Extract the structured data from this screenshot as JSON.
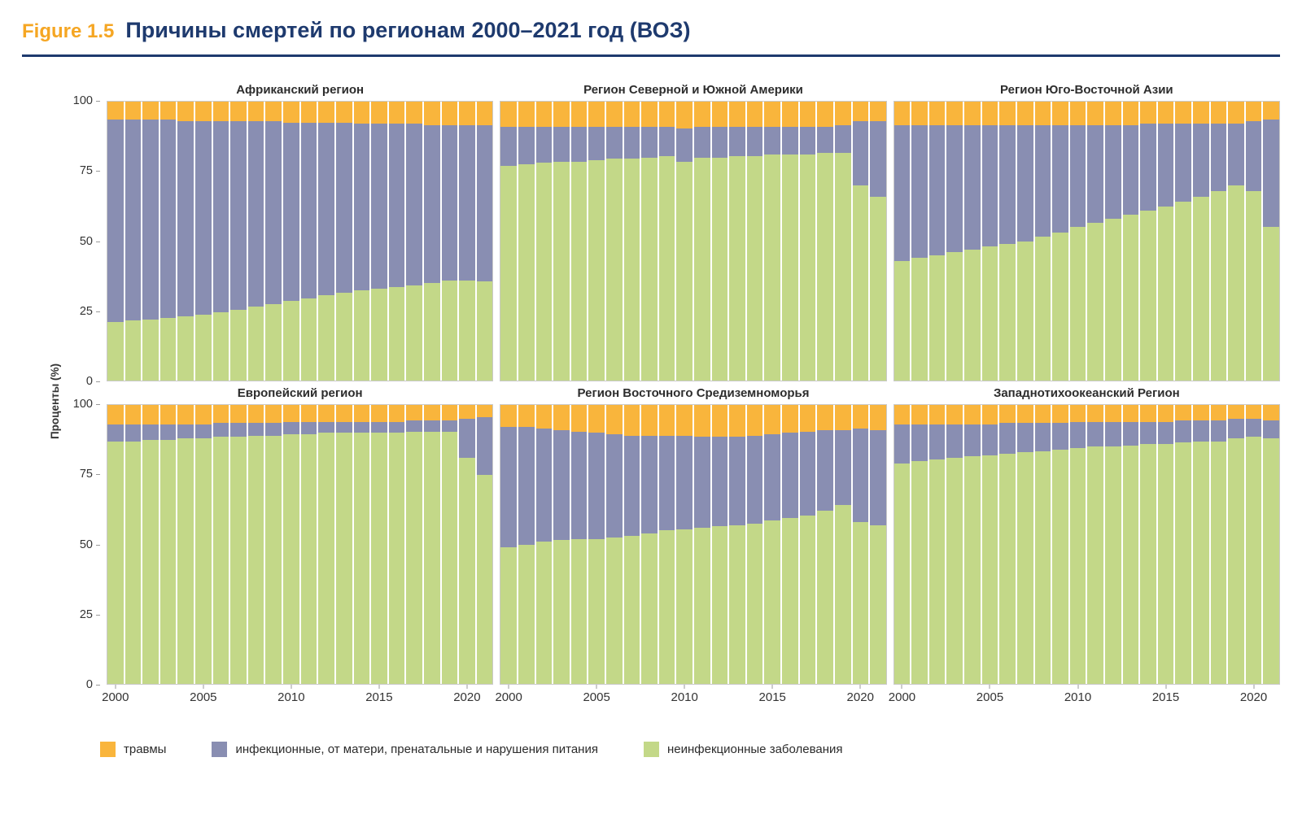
{
  "header": {
    "figure_label": "Figure 1.5",
    "title": "Причины смертей по регионам 2000–2021 год (ВОЗ)"
  },
  "axis": {
    "y_label": "Проценты (%)",
    "y_ticks": [
      100,
      75,
      50,
      25,
      0
    ],
    "x_ticks": [
      2000,
      2005,
      2010,
      2015,
      2020
    ]
  },
  "colors": {
    "injuries": "#F9B53C",
    "infectious": "#898EB2",
    "noncommunicable": "#C3D888",
    "title_navy": "#1E3A6E",
    "figure_orange": "#F5A623"
  },
  "legend": [
    {
      "key": "injuries",
      "label": "травмы",
      "color": "#F9B53C"
    },
    {
      "key": "infectious",
      "label": "инфекционные, от матери, пренатальные и нарушения питания",
      "color": "#898EB2"
    },
    {
      "key": "noncommunicable",
      "label": "неинфекционные заболевания",
      "color": "#C3D888"
    }
  ],
  "chart_data": {
    "type": "bar",
    "stacked": true,
    "ylim": [
      0,
      100
    ],
    "ylabel": "Проценты (%)",
    "years": [
      2000,
      2001,
      2002,
      2003,
      2004,
      2005,
      2006,
      2007,
      2008,
      2009,
      2010,
      2011,
      2012,
      2013,
      2014,
      2015,
      2016,
      2017,
      2018,
      2019,
      2020,
      2021
    ],
    "panels": [
      {
        "title": "Африканский регион",
        "series": [
          {
            "key": "noncommunicable",
            "values": [
              21,
              21.5,
              22,
              22.5,
              23,
              23.5,
              24.5,
              25.5,
              26.5,
              27.5,
              28.5,
              29.5,
              30.5,
              31.5,
              32.5,
              33,
              33.5,
              34,
              35,
              36,
              36,
              35.5
            ]
          },
          {
            "key": "infectious",
            "values": [
              72.5,
              72,
              71.5,
              71,
              70,
              69.5,
              68.5,
              67.5,
              66.5,
              65.5,
              64,
              63,
              62,
              61,
              59.5,
              59,
              58.5,
              58,
              56.5,
              55.5,
              55.5,
              56
            ]
          },
          {
            "key": "injuries",
            "values": [
              6.5,
              6.5,
              6.5,
              6.5,
              7,
              7,
              7,
              7,
              7,
              7,
              7.5,
              7.5,
              7.5,
              7.5,
              8,
              8,
              8,
              8,
              8.5,
              8.5,
              8.5,
              8.5
            ]
          }
        ]
      },
      {
        "title": "Регион Северной и Южной Америки",
        "series": [
          {
            "key": "noncommunicable",
            "values": [
              77,
              77.5,
              78,
              78.5,
              78.5,
              79,
              79.5,
              79.5,
              80,
              80.5,
              78.5,
              80,
              80,
              80.5,
              80.5,
              81,
              81,
              81,
              81.5,
              81.5,
              70,
              66
            ]
          },
          {
            "key": "infectious",
            "values": [
              14,
              13.5,
              13,
              12.5,
              12.5,
              12,
              11.5,
              11.5,
              11,
              10.5,
              12,
              11,
              11,
              10.5,
              10.5,
              10,
              10,
              10,
              9.5,
              10,
              23,
              27
            ]
          },
          {
            "key": "injuries",
            "values": [
              9,
              9,
              9,
              9,
              9,
              9,
              9,
              9,
              9,
              9,
              9.5,
              9,
              9,
              9,
              9,
              9,
              9,
              9,
              9,
              8.5,
              7,
              7
            ]
          }
        ]
      },
      {
        "title": "Регион Юго-Восточной Азии",
        "series": [
          {
            "key": "noncommunicable",
            "values": [
              43,
              44,
              45,
              46,
              47,
              48,
              49,
              50,
              51.5,
              53,
              55,
              56.5,
              58,
              59.5,
              61,
              62.5,
              64,
              66,
              68,
              70,
              68,
              55
            ]
          },
          {
            "key": "infectious",
            "values": [
              48.5,
              47.5,
              46.5,
              45.5,
              44.5,
              43.5,
              42.5,
              41.5,
              40,
              38.5,
              36.5,
              35,
              33.5,
              32,
              31,
              29.5,
              28,
              26,
              24,
              22,
              25,
              38.5
            ]
          },
          {
            "key": "injuries",
            "values": [
              8.5,
              8.5,
              8.5,
              8.5,
              8.5,
              8.5,
              8.5,
              8.5,
              8.5,
              8.5,
              8.5,
              8.5,
              8.5,
              8.5,
              8,
              8,
              8,
              8,
              8,
              8,
              7,
              6.5
            ]
          }
        ]
      },
      {
        "title": "Европейский регион",
        "series": [
          {
            "key": "noncommunicable",
            "values": [
              87,
              87,
              87.5,
              87.5,
              88,
              88,
              88.5,
              88.5,
              89,
              89,
              89.5,
              89.5,
              90,
              90,
              90,
              90,
              90,
              90.5,
              90.5,
              90.5,
              81,
              75
            ]
          },
          {
            "key": "infectious",
            "values": [
              6,
              6,
              5.5,
              5.5,
              5,
              5,
              5,
              5,
              4.5,
              4.5,
              4.5,
              4.5,
              4,
              4,
              4,
              4,
              4,
              4,
              4,
              4,
              14,
              20.5
            ]
          },
          {
            "key": "injuries",
            "values": [
              7,
              7,
              7,
              7,
              7,
              7,
              6.5,
              6.5,
              6.5,
              6.5,
              6,
              6,
              6,
              6,
              6,
              6,
              6,
              5.5,
              5.5,
              5.5,
              5,
              4.5
            ]
          }
        ]
      },
      {
        "title": "Регион Восточного Средиземноморья",
        "series": [
          {
            "key": "noncommunicable",
            "values": [
              49,
              50,
              51,
              51.5,
              52,
              52,
              52.5,
              53,
              54,
              55,
              55.5,
              56,
              56.5,
              57,
              57.5,
              58.5,
              59.5,
              60.5,
              62,
              64,
              58,
              57
            ]
          },
          {
            "key": "infectious",
            "values": [
              43,
              42,
              40.5,
              39.5,
              38.5,
              38,
              37,
              36,
              35,
              34,
              33.5,
              32.5,
              32,
              31.5,
              31.5,
              31,
              30.5,
              30,
              29,
              27,
              33.5,
              34
            ]
          },
          {
            "key": "injuries",
            "values": [
              8,
              8,
              8.5,
              9,
              9.5,
              10,
              10.5,
              11,
              11,
              11,
              11,
              11.5,
              11.5,
              11.5,
              11,
              10.5,
              10,
              9.5,
              9,
              9,
              8.5,
              9
            ]
          }
        ]
      },
      {
        "title": "Западнотихоокеанский Регион",
        "series": [
          {
            "key": "noncommunicable",
            "values": [
              79,
              80,
              80.5,
              81,
              81.5,
              82,
              82.5,
              83,
              83.5,
              84,
              84.5,
              85,
              85,
              85.5,
              86,
              86,
              86.5,
              87,
              87,
              88,
              88.5,
              88
            ]
          },
          {
            "key": "infectious",
            "values": [
              14,
              13,
              12.5,
              12,
              11.5,
              11,
              11,
              10.5,
              10,
              9.5,
              9.5,
              9,
              9,
              8.5,
              8,
              8,
              8,
              7.5,
              7.5,
              7,
              6.5,
              6.5
            ]
          },
          {
            "key": "injuries",
            "values": [
              7,
              7,
              7,
              7,
              7,
              7,
              6.5,
              6.5,
              6.5,
              6.5,
              6,
              6,
              6,
              6,
              6,
              6,
              5.5,
              5.5,
              5.5,
              5,
              5,
              5.5
            ]
          }
        ]
      }
    ]
  }
}
